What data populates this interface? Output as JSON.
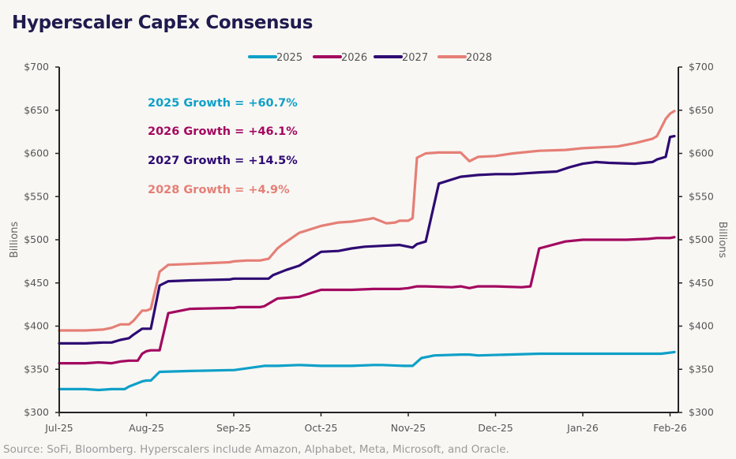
{
  "chart_data": {
    "type": "line",
    "title": "Hyperscaler CapEx Consensus",
    "xlabel": "",
    "ylabel": "Billions",
    "ylabel_right": "Billions",
    "ylim": [
      300,
      700
    ],
    "yticks": [
      300,
      350,
      400,
      450,
      500,
      550,
      600,
      650,
      700
    ],
    "ytick_labels": [
      "$300",
      "$350",
      "$400",
      "$450",
      "$500",
      "$550",
      "$600",
      "$650",
      "$700"
    ],
    "x_range_months": [
      0,
      7.1
    ],
    "xticks": [
      0,
      1,
      2,
      3,
      4,
      5,
      6,
      7
    ],
    "xtick_labels": [
      "Jul-25",
      "Aug-25",
      "Sep-25",
      "Oct-25",
      "Nov-25",
      "Dec-25",
      "Jan-26",
      "Feb-26"
    ],
    "x_unit": "months since Jul-25",
    "grid": false,
    "legend_position": "top-center",
    "series": [
      {
        "name": "2025",
        "color": "#0fa0c8",
        "x": [
          0,
          0.3,
          0.45,
          0.6,
          0.65,
          0.75,
          0.8,
          0.95,
          1.0,
          1.05,
          1.15,
          1.5,
          1.95,
          2.0,
          2.35,
          2.5,
          2.75,
          3.0,
          3.35,
          3.6,
          3.7,
          3.95,
          4.0,
          4.05,
          4.15,
          4.3,
          4.6,
          4.7,
          4.8,
          5.5,
          6.0,
          6.5,
          6.9,
          7.05
        ],
        "values": [
          327,
          327,
          326,
          327,
          327,
          327,
          330,
          336,
          337,
          337,
          347,
          348,
          349,
          349,
          354,
          354,
          355,
          354,
          354,
          355,
          355,
          354,
          354,
          354,
          363,
          366,
          367,
          367,
          366,
          368,
          368,
          368,
          368,
          370
        ]
      },
      {
        "name": "2026",
        "color": "#a3085f",
        "x": [
          0,
          0.3,
          0.45,
          0.6,
          0.7,
          0.8,
          0.9,
          0.95,
          1.0,
          1.05,
          1.15,
          1.25,
          1.5,
          1.95,
          2.0,
          2.05,
          2.15,
          2.3,
          2.35,
          2.5,
          2.75,
          3.0,
          3.2,
          3.35,
          3.6,
          3.9,
          4.0,
          4.05,
          4.1,
          4.2,
          4.5,
          4.6,
          4.7,
          4.8,
          5.0,
          5.3,
          5.4,
          5.5,
          5.8,
          6.0,
          6.2,
          6.3,
          6.45,
          6.5,
          6.75,
          6.85,
          6.95,
          7.0,
          7.05
        ],
        "values": [
          357,
          357,
          358,
          357,
          359,
          360,
          360,
          368,
          371,
          372,
          372,
          415,
          420,
          421,
          421,
          422,
          422,
          422,
          423,
          432,
          434,
          442,
          442,
          442,
          443,
          443,
          444,
          445,
          446,
          446,
          445,
          446,
          444,
          446,
          446,
          445,
          446,
          490,
          498,
          500,
          500,
          500,
          500,
          500,
          501,
          502,
          502,
          502,
          503
        ]
      },
      {
        "name": "2027",
        "color": "#2e0a72",
        "x": [
          0,
          0.3,
          0.5,
          0.6,
          0.7,
          0.8,
          0.85,
          0.95,
          1.0,
          1.05,
          1.15,
          1.25,
          1.5,
          1.95,
          2.0,
          2.1,
          2.25,
          2.4,
          2.45,
          2.6,
          2.75,
          3.0,
          3.2,
          3.35,
          3.5,
          3.7,
          3.9,
          4.0,
          4.05,
          4.1,
          4.2,
          4.35,
          4.6,
          4.7,
          4.8,
          5.0,
          5.2,
          5.35,
          5.5,
          5.7,
          5.85,
          6.0,
          6.15,
          6.3,
          6.6,
          6.8,
          6.85,
          6.95,
          7.0,
          7.05
        ],
        "values": [
          380,
          380,
          381,
          381,
          384,
          386,
          390,
          397,
          397,
          397,
          447,
          452,
          453,
          454,
          455,
          455,
          455,
          455,
          459,
          465,
          470,
          486,
          487,
          490,
          492,
          493,
          494,
          492,
          491,
          495,
          498,
          565,
          573,
          574,
          575,
          576,
          576,
          577,
          578,
          579,
          584,
          588,
          590,
          589,
          588,
          590,
          593,
          596,
          619,
          620
        ]
      },
      {
        "name": "2028",
        "color": "#e57f76",
        "x": [
          0,
          0.3,
          0.5,
          0.6,
          0.7,
          0.8,
          0.85,
          0.95,
          1.0,
          1.05,
          1.15,
          1.25,
          1.5,
          1.95,
          2.0,
          2.15,
          2.3,
          2.4,
          2.5,
          2.55,
          2.75,
          3.0,
          3.2,
          3.35,
          3.55,
          3.6,
          3.75,
          3.85,
          3.9,
          4.0,
          4.05,
          4.1,
          4.2,
          4.35,
          4.6,
          4.7,
          4.8,
          5.0,
          5.2,
          5.5,
          5.8,
          6.0,
          6.2,
          6.4,
          6.6,
          6.8,
          6.85,
          6.95,
          7.0,
          7.05
        ],
        "values": [
          395,
          395,
          396,
          398,
          402,
          402,
          406,
          418,
          418,
          420,
          463,
          471,
          472,
          474,
          475,
          476,
          476,
          478,
          490,
          494,
          508,
          516,
          520,
          521,
          524,
          525,
          519,
          520,
          522,
          522,
          525,
          595,
          600,
          601,
          601,
          591,
          596,
          597,
          600,
          603,
          604,
          606,
          607,
          608,
          612,
          617,
          620,
          640,
          646,
          649
        ]
      }
    ],
    "annotations": [
      {
        "text": "2025 Growth = +60.7%",
        "color": "#0fa0c8"
      },
      {
        "text": "2026 Growth = +46.1%",
        "color": "#a3085f"
      },
      {
        "text": "2027 Growth = +14.5%",
        "color": "#2e0a72"
      },
      {
        "text": "2028 Growth = +4.9%",
        "color": "#e57f76"
      }
    ]
  },
  "source": "Source: SoFi, Bloomberg. Hyperscalers include Amazon, Alphabet, Meta, Microsoft, and Oracle."
}
